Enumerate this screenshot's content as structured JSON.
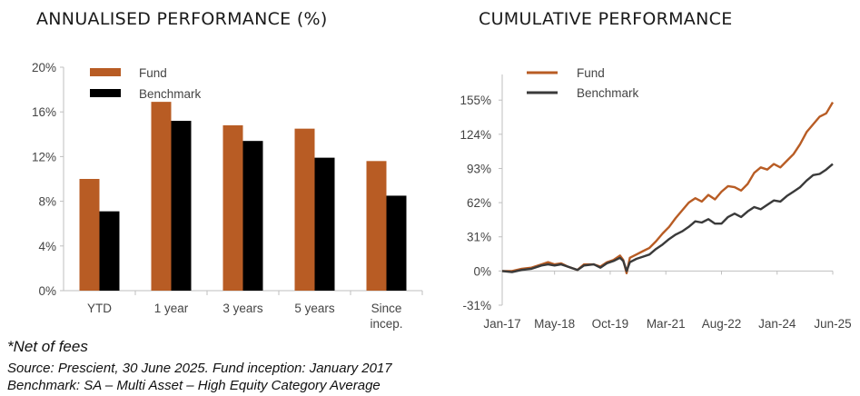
{
  "titles": {
    "left": "ANNUALISED PERFORMANCE (%)",
    "right": "CUMULATIVE PERFORMANCE"
  },
  "colors": {
    "fund": "#b85c24",
    "benchmark": "#000000",
    "benchmark_line": "#3a3a3a",
    "axis": "#bfbfbf"
  },
  "chart_data": [
    {
      "type": "bar",
      "title": "ANNUALISED PERFORMANCE (%)",
      "categories": [
        "YTD",
        "1 year",
        "3 years",
        "5 years",
        [
          "Since",
          "incep."
        ]
      ],
      "series": [
        {
          "name": "Fund",
          "values": [
            10.0,
            16.9,
            14.8,
            14.5,
            11.6
          ]
        },
        {
          "name": "Benchmark",
          "values": [
            7.1,
            15.2,
            13.4,
            11.9,
            8.5
          ]
        }
      ],
      "ylim": [
        0,
        20
      ],
      "yticks": [
        "0%",
        "4%",
        "8%",
        "12%",
        "16%",
        "20%"
      ],
      "ytick_values": [
        0,
        4,
        8,
        12,
        16,
        20
      ],
      "legend": "top-left",
      "grid": false
    },
    {
      "type": "line",
      "title": "CUMULATIVE PERFORMANCE",
      "xlim": [
        "2017-01",
        "2025-06"
      ],
      "xticks": [
        "Jan-17",
        "May-18",
        "Oct-19",
        "Mar-21",
        "Aug-22",
        "Jan-24",
        "Jun-25"
      ],
      "ylim": [
        -31,
        170
      ],
      "yticks": [
        "-31%",
        "0%",
        "31%",
        "62%",
        "93%",
        "124%",
        "155%"
      ],
      "ytick_values": [
        -31,
        0,
        31,
        62,
        93,
        124,
        155
      ],
      "legend": "top-left",
      "grid": false,
      "series": [
        {
          "name": "Fund",
          "x": [
            "2017-01",
            "2017-04",
            "2017-07",
            "2017-10",
            "2018-01",
            "2018-03",
            "2018-05",
            "2018-07",
            "2018-09",
            "2018-12",
            "2019-02",
            "2019-05",
            "2019-07",
            "2019-09",
            "2019-11",
            "2020-01",
            "2020-02",
            "2020-03",
            "2020-04",
            "2020-06",
            "2020-08",
            "2020-10",
            "2020-12",
            "2021-02",
            "2021-04",
            "2021-06",
            "2021-08",
            "2021-10",
            "2021-12",
            "2022-02",
            "2022-04",
            "2022-06",
            "2022-08",
            "2022-10",
            "2022-12",
            "2023-02",
            "2023-04",
            "2023-06",
            "2023-08",
            "2023-10",
            "2023-12",
            "2024-02",
            "2024-04",
            "2024-06",
            "2024-08",
            "2024-10",
            "2024-12",
            "2025-02",
            "2025-04",
            "2025-06"
          ],
          "y": [
            0,
            0,
            2,
            3,
            6,
            8,
            6,
            7,
            4,
            1,
            6,
            6,
            4,
            8,
            10,
            14,
            10,
            -2,
            12,
            15,
            18,
            21,
            27,
            34,
            40,
            48,
            55,
            62,
            66,
            63,
            69,
            65,
            72,
            77,
            76,
            73,
            79,
            89,
            94,
            92,
            97,
            94,
            100,
            106,
            115,
            126,
            133,
            140,
            143,
            153
          ]
        },
        {
          "name": "Benchmark",
          "x": [
            "2017-01",
            "2017-04",
            "2017-07",
            "2017-10",
            "2018-01",
            "2018-03",
            "2018-05",
            "2018-07",
            "2018-09",
            "2018-12",
            "2019-02",
            "2019-05",
            "2019-07",
            "2019-09",
            "2019-11",
            "2020-01",
            "2020-02",
            "2020-03",
            "2020-04",
            "2020-06",
            "2020-08",
            "2020-10",
            "2020-12",
            "2021-02",
            "2021-04",
            "2021-06",
            "2021-08",
            "2021-10",
            "2021-12",
            "2022-02",
            "2022-04",
            "2022-06",
            "2022-08",
            "2022-10",
            "2022-12",
            "2023-02",
            "2023-04",
            "2023-06",
            "2023-08",
            "2023-10",
            "2023-12",
            "2024-02",
            "2024-04",
            "2024-06",
            "2024-08",
            "2024-10",
            "2024-12",
            "2025-02",
            "2025-04",
            "2025-06"
          ],
          "y": [
            0,
            -1,
            1,
            2,
            5,
            6,
            5,
            6,
            4,
            1,
            5,
            6,
            3,
            7,
            9,
            12,
            9,
            0,
            8,
            11,
            13,
            15,
            20,
            24,
            29,
            33,
            36,
            40,
            45,
            44,
            47,
            43,
            43,
            49,
            52,
            49,
            54,
            58,
            56,
            60,
            64,
            63,
            68,
            72,
            76,
            82,
            87,
            88,
            92,
            97
          ]
        }
      ]
    }
  ],
  "footnotes": {
    "net": "*Net of fees",
    "source": "Source: Prescient, 30 June 2025. Fund inception: January 2017",
    "benchmark": "Benchmark: SA – Multi Asset – High Equity Category Average"
  }
}
